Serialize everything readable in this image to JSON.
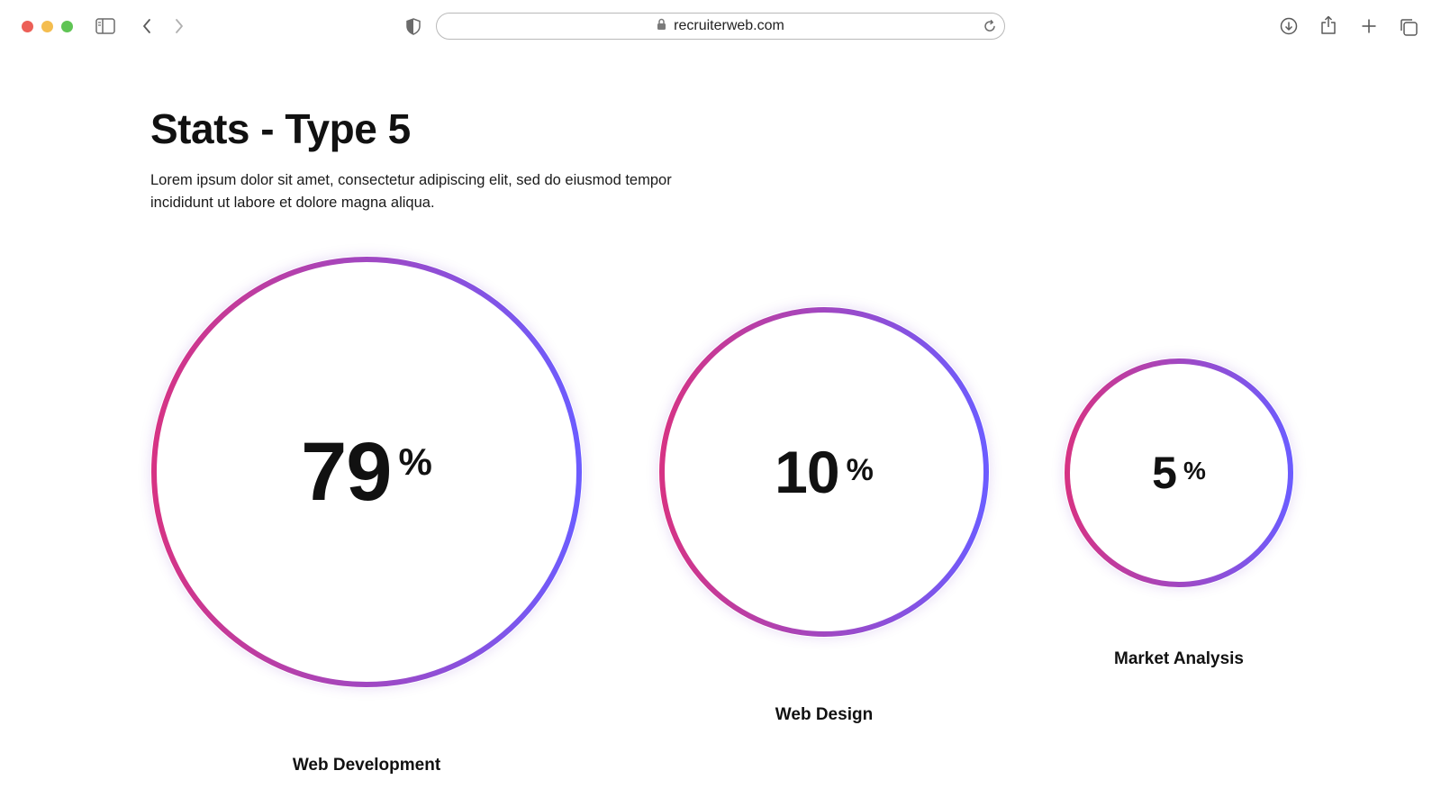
{
  "browser": {
    "url": "recruiterweb.com",
    "icons": {
      "sidebar": "sidebar-icon",
      "back": "chevron-left-icon",
      "forward": "chevron-right-icon",
      "privacy": "shield-icon",
      "lock": "lock-icon",
      "reload": "reload-icon",
      "download": "download-icon",
      "share": "share-icon",
      "new_tab": "plus-icon",
      "tabs": "tabs-overview-icon"
    }
  },
  "page": {
    "title": "Stats - Type 5",
    "description": "Lorem ipsum dolor sit amet, consectetur adipiscing elit, sed do eiusmod tempor incididunt ut labore et dolore magna aliqua."
  },
  "stats": [
    {
      "value": "79",
      "unit": "%",
      "label": "Web Development"
    },
    {
      "value": "10",
      "unit": "%",
      "label": "Web Design"
    },
    {
      "value": "5",
      "unit": "%",
      "label": "Market Analysis"
    }
  ],
  "colors": {
    "ring_start": "#d63384",
    "ring_end": "#6c5cff"
  }
}
